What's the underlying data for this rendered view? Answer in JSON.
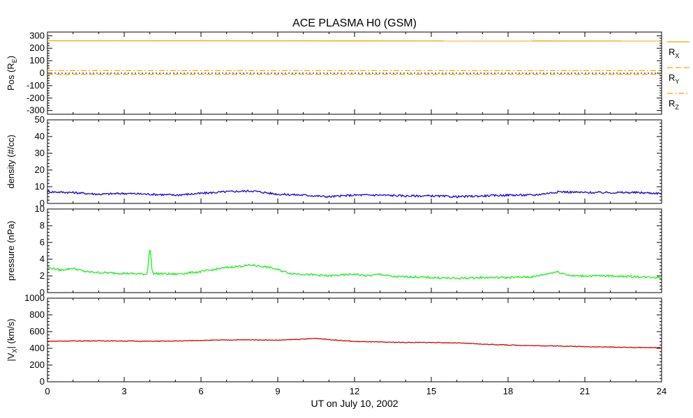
{
  "chart_data": {
    "type": "line",
    "title": "ACE PLASMA H0 (GSM)",
    "xlabel": "UT on July 10, 2002",
    "xlim": [
      0,
      24
    ],
    "xticks": [
      0,
      3,
      6,
      9,
      12,
      15,
      18,
      21,
      24
    ],
    "colors": {
      "rx": "#f4a300",
      "ry": "#f4a300",
      "rz": "#f4a300",
      "density": "#1a00d6",
      "pressure": "#1bef1b",
      "vx": "#d80000",
      "axis": "#000000"
    },
    "panels": [
      {
        "id": "pos",
        "ylabel": "Pos (R",
        "ylabel_sub": "E",
        "ylabel_tail": ")",
        "ylim": [
          -330,
          330
        ],
        "yticks": [
          -300,
          -200,
          -100,
          0,
          100,
          200,
          300
        ],
        "zero_line": true,
        "series": [
          {
            "name": "R",
            "sub": "X",
            "style": "solid",
            "color": "#f4a300",
            "x": [
              0,
              24
            ],
            "y": [
              260,
              258
            ]
          },
          {
            "name": "R",
            "sub": "Y",
            "style": "dashed",
            "color": "#f4a300",
            "x": [
              0,
              24
            ],
            "y": [
              -9,
              -9
            ]
          },
          {
            "name": "R",
            "sub": "Z",
            "style": "dashdot",
            "color": "#f4a300",
            "x": [
              0,
              24
            ],
            "y": [
              20,
              20
            ]
          }
        ]
      },
      {
        "id": "density",
        "ylabel": "density (#/cc)",
        "ylim": [
          0,
          50
        ],
        "yticks": [
          0,
          10,
          20,
          30,
          40,
          50
        ],
        "series": [
          {
            "name": "",
            "color": "#1a00d6",
            "x": [
              0,
              1,
              2,
              3,
              4,
              5,
              6,
              7,
              8,
              9,
              10,
              11,
              12,
              13,
              14,
              15,
              16,
              17,
              18,
              19,
              20,
              21,
              22,
              23,
              24
            ],
            "y": [
              7,
              6.5,
              5.5,
              6,
              5.5,
              5,
              6,
              7,
              7.5,
              5.5,
              5,
              4,
              5,
              5,
              4.5,
              4.5,
              4,
              4.5,
              5,
              5,
              7,
              6.5,
              6.5,
              6.5,
              6
            ]
          }
        ]
      },
      {
        "id": "pressure",
        "ylabel": "pressure (nPa)",
        "ylim": [
          0,
          10
        ],
        "yticks": [
          0,
          2,
          4,
          6,
          8,
          10
        ],
        "series": [
          {
            "name": "",
            "color": "#1bef1b",
            "x": [
              0,
              0.5,
              1,
              1.5,
              2,
              3,
              3.9,
              4.0,
              4.1,
              5,
              6,
              7,
              8,
              8.7,
              9.5,
              10,
              11,
              12,
              12.5,
              13,
              13.5,
              14,
              15,
              16,
              17,
              18,
              19,
              19.9,
              20.5,
              21,
              22,
              23,
              24
            ],
            "y": [
              3,
              2.7,
              2.9,
              2.5,
              2.4,
              2.3,
              2.2,
              5.6,
              2.3,
              2.2,
              2.5,
              3,
              3.3,
              3,
              2.3,
              2.2,
              2,
              2.2,
              2,
              2.2,
              1.9,
              1.9,
              1.8,
              1.7,
              1.8,
              1.8,
              1.9,
              2.5,
              2,
              2,
              2,
              1.9,
              1.8
            ]
          }
        ]
      },
      {
        "id": "vx",
        "ylabel": "|V",
        "ylabel_sub": "X",
        "ylabel_tail": "| (km/s)",
        "ylim": [
          0,
          1000
        ],
        "yticks": [
          0,
          200,
          400,
          600,
          800,
          1000
        ],
        "series": [
          {
            "name": "",
            "color": "#d80000",
            "x": [
              0,
              1,
              2,
              3,
              4,
              5,
              6,
              7,
              8,
              9,
              10,
              10.5,
              11,
              12,
              13,
              14,
              15,
              16,
              17,
              18,
              19,
              20,
              21,
              22,
              23,
              24
            ],
            "y": [
              485,
              488,
              490,
              488,
              485,
              487,
              495,
              500,
              502,
              497,
              510,
              520,
              505,
              482,
              475,
              470,
              470,
              465,
              450,
              440,
              432,
              428,
              420,
              415,
              410,
              408
            ]
          }
        ]
      }
    ]
  }
}
